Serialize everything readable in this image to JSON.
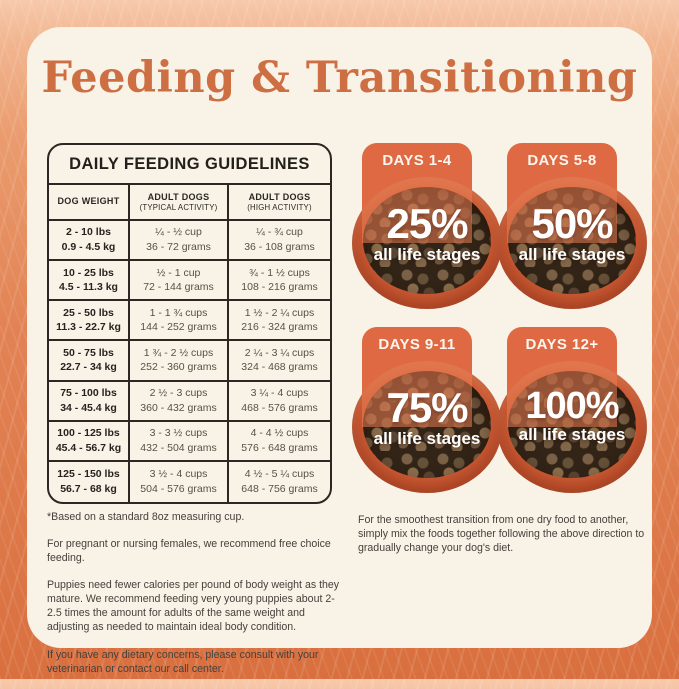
{
  "title": "Feeding & Transitioning",
  "table": {
    "title": "DAILY FEEDING GUIDELINES",
    "columns": [
      {
        "label": "DOG WEIGHT",
        "sub": ""
      },
      {
        "label": "ADULT DOGS",
        "sub": "(TYPICAL ACTIVITY)"
      },
      {
        "label": "ADULT DOGS",
        "sub": "(HIGH ACTIVITY)"
      }
    ],
    "rows": [
      {
        "weight": [
          "2 - 10 lbs",
          "0.9 - 4.5 kg"
        ],
        "typical": [
          "¼ - ½ cup",
          "36 - 72 grams"
        ],
        "high": [
          "¼ - ¾ cup",
          "36 - 108 grams"
        ]
      },
      {
        "weight": [
          "10 - 25 lbs",
          "4.5 - 11.3 kg"
        ],
        "typical": [
          "½ - 1 cup",
          "72 - 144 grams"
        ],
        "high": [
          "¾ - 1 ½ cups",
          "108 - 216 grams"
        ]
      },
      {
        "weight": [
          "25 - 50 lbs",
          "11.3 - 22.7 kg"
        ],
        "typical": [
          "1 - 1 ¾ cups",
          "144 - 252 grams"
        ],
        "high": [
          "1 ½ - 2 ¼ cups",
          "216 - 324 grams"
        ]
      },
      {
        "weight": [
          "50 - 75 lbs",
          "22.7 - 34 kg"
        ],
        "typical": [
          "1 ¾ - 2 ½ cups",
          "252 - 360 grams"
        ],
        "high": [
          "2 ¼ - 3 ¼ cups",
          "324 - 468 grams"
        ]
      },
      {
        "weight": [
          "75 - 100 lbs",
          "34 - 45.4 kg"
        ],
        "typical": [
          "2 ½ - 3 cups",
          "360 - 432 grams"
        ],
        "high": [
          "3 ¼ - 4 cups",
          "468 - 576 grams"
        ]
      },
      {
        "weight": [
          "100 - 125 lbs",
          "45.4 - 56.7 kg"
        ],
        "typical": [
          "3 - 3 ½ cups",
          "432 - 504 grams"
        ],
        "high": [
          "4 - 4 ½ cups",
          "576 - 648 grams"
        ]
      },
      {
        "weight": [
          "125 - 150 lbs",
          "56.7 - 68 kg"
        ],
        "typical": [
          "3 ½ - 4 cups",
          "504 - 576 grams"
        ],
        "high": [
          "4 ½ - 5 ¼ cups",
          "648 - 756 grams"
        ]
      }
    ],
    "footnote": "*Based on a standard 8oz measuring cup."
  },
  "notes": [
    "For pregnant or nursing females, we recommend free choice feeding.",
    "Puppies need fewer calories per pound of body weight as they mature. We recommend feeding very young puppies about 2-2.5 times the amount for adults of the same weight and adjusting as needed to maintain ideal body condition.",
    "If you have any dietary concerns, please consult with your veterinarian or contact our call center."
  ],
  "transition": {
    "stages": [
      {
        "days": "DAYS 1-4",
        "percent": "25%",
        "label": "all life stages"
      },
      {
        "days": "DAYS 5-8",
        "percent": "50%",
        "label": "all life stages"
      },
      {
        "days": "DAYS 9-11",
        "percent": "75%",
        "label": "all life stages"
      },
      {
        "days": "DAYS 12+",
        "percent": "100%",
        "label": "all life stages"
      }
    ],
    "note": "For the smoothest transition from one dry food to another, simply mix the foods together following the above direction to gradually change your dog's diet."
  },
  "colors": {
    "accent_orange": "#DE6943",
    "title_orange": "#CD6E43",
    "card_cream": "#F8F2E7",
    "background_orange": "#DD7848",
    "table_ink": "#2B2722",
    "bowl_rim": "#CC5B34"
  }
}
